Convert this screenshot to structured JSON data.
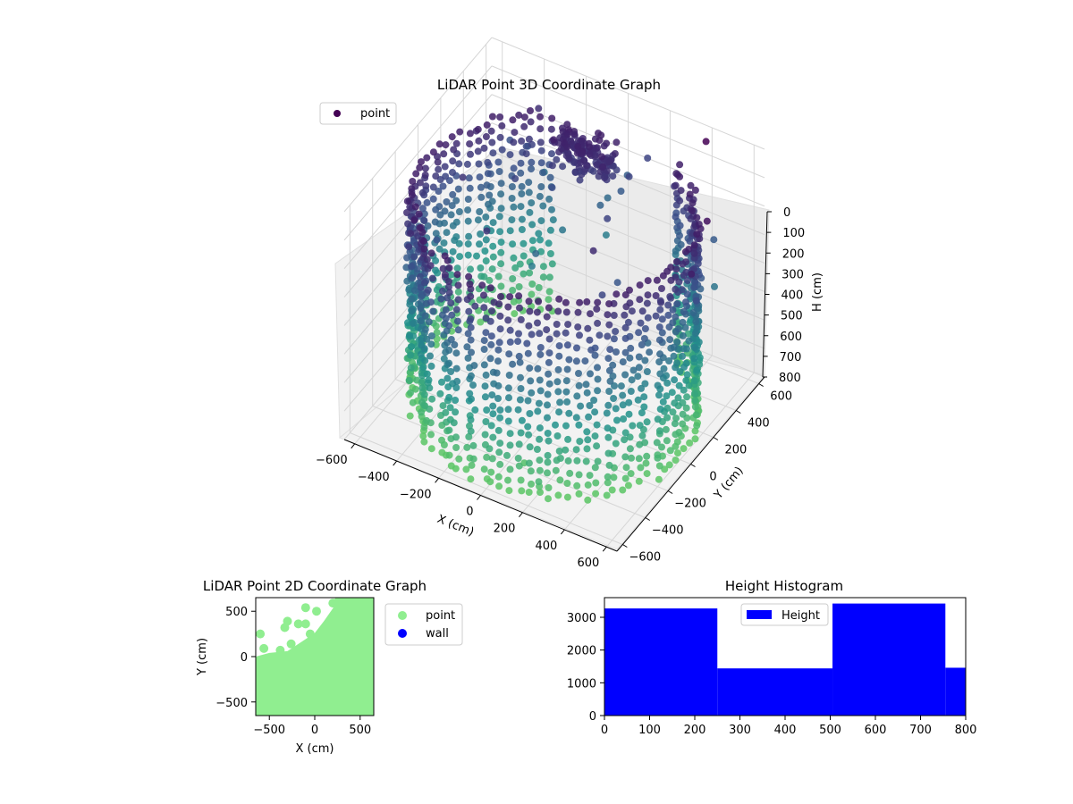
{
  "figure": {
    "background": "#ffffff"
  },
  "chart_data": [
    {
      "id": "lidar-3d",
      "type": "scatter",
      "projection": "3d",
      "title": "LiDAR Point 3D Coordinate Graph",
      "xlabel": "X (cm)",
      "ylabel": "Y (cm)",
      "zlabel": "H (cm)",
      "xlim": [
        -650,
        650
      ],
      "ylim": [
        -650,
        650
      ],
      "zlim": [
        0,
        800
      ],
      "z_inverted": true,
      "x_ticks": [
        "−600",
        "−400",
        "−200",
        "0",
        "200",
        "400",
        "600"
      ],
      "y_ticks": [
        "−600",
        "−400",
        "−200",
        "0",
        "200",
        "400",
        "600"
      ],
      "z_ticks": [
        "0",
        "100",
        "200",
        "300",
        "400",
        "500",
        "600",
        "700",
        "800"
      ],
      "grid": true,
      "legend": {
        "entries": [
          "point"
        ],
        "placement": "top-left"
      },
      "colormap": [
        "#440154",
        "#3b528b",
        "#21918c",
        "#5ec962"
      ],
      "structure": {
        "wall_ring": {
          "radius": 600,
          "height_range": [
            100,
            800
          ],
          "angle_range_deg": [
            -150,
            150
          ]
        },
        "object_cluster": {
          "center": [
            -100,
            450
          ],
          "height_range": [
            100,
            200
          ]
        },
        "stray_points": [
          {
            "x": 420,
            "y": 560,
            "h": 0
          },
          {
            "x": 620,
            "y": 200,
            "h": 50
          },
          {
            "x": 680,
            "y": -50,
            "h": 100
          },
          {
            "x": 600,
            "y": 100,
            "h": 200
          },
          {
            "x": 650,
            "y": 50,
            "h": 250
          },
          {
            "x": 300,
            "y": -500,
            "h": 650
          },
          {
            "x": 250,
            "y": -600,
            "h": 700
          },
          {
            "x": 100,
            "y": -450,
            "h": 750
          },
          {
            "x": 600,
            "y": -200,
            "h": 700
          },
          {
            "x": -400,
            "y": 600,
            "h": 150
          },
          {
            "x": -350,
            "y": 400,
            "h": 200
          },
          {
            "x": -200,
            "y": 350,
            "h": 250
          }
        ]
      }
    },
    {
      "id": "lidar-2d",
      "type": "scatter",
      "title": "LiDAR Point 2D Coordinate Graph",
      "xlabel": "X (cm)",
      "ylabel": "Y (cm)",
      "xlim": [
        -650,
        650
      ],
      "ylim": [
        -650,
        650
      ],
      "x_ticks": [
        "−500",
        "0",
        "500"
      ],
      "y_ticks": [
        "500",
        "0",
        "−500"
      ],
      "legend": {
        "entries": [
          "point",
          "wall"
        ],
        "placement": "outside-right"
      },
      "series": [
        {
          "name": "point",
          "color": "#90ee90"
        },
        {
          "name": "wall",
          "color": "#0000ff"
        }
      ],
      "scatter_points": [
        [
          -600,
          250
        ],
        [
          -560,
          90
        ],
        [
          -300,
          390
        ],
        [
          -330,
          320
        ],
        [
          -260,
          140
        ],
        [
          -180,
          360
        ],
        [
          -100,
          540
        ],
        [
          -100,
          360
        ],
        [
          20,
          500
        ],
        [
          -50,
          250
        ],
        [
          200,
          590
        ],
        [
          260,
          610
        ],
        [
          -380,
          70
        ]
      ],
      "filled_region": [
        [
          -650,
          -650
        ],
        [
          -650,
          0
        ],
        [
          -500,
          40
        ],
        [
          -300,
          60
        ],
        [
          -150,
          160
        ],
        [
          0,
          260
        ],
        [
          100,
          390
        ],
        [
          220,
          560
        ],
        [
          300,
          650
        ],
        [
          650,
          650
        ],
        [
          650,
          -650
        ]
      ]
    },
    {
      "id": "height-histogram",
      "type": "bar",
      "title": "Height Histogram",
      "xlabel": "",
      "ylabel": "",
      "xlim": [
        0,
        800
      ],
      "ylim": [
        0,
        3600
      ],
      "x_ticks": [
        "0",
        "100",
        "200",
        "300",
        "400",
        "500",
        "600",
        "700",
        "800"
      ],
      "y_ticks": [
        "0",
        "1000",
        "2000",
        "3000"
      ],
      "legend": {
        "entries": [
          "Height"
        ],
        "placement": "upper-center"
      },
      "color": "#0000ff",
      "bins": [
        {
          "start": 0,
          "end": 250,
          "count": 3270
        },
        {
          "start": 250,
          "end": 505,
          "count": 1440
        },
        {
          "start": 505,
          "end": 755,
          "count": 3420
        },
        {
          "start": 755,
          "end": 800,
          "count": 1460
        }
      ]
    }
  ]
}
